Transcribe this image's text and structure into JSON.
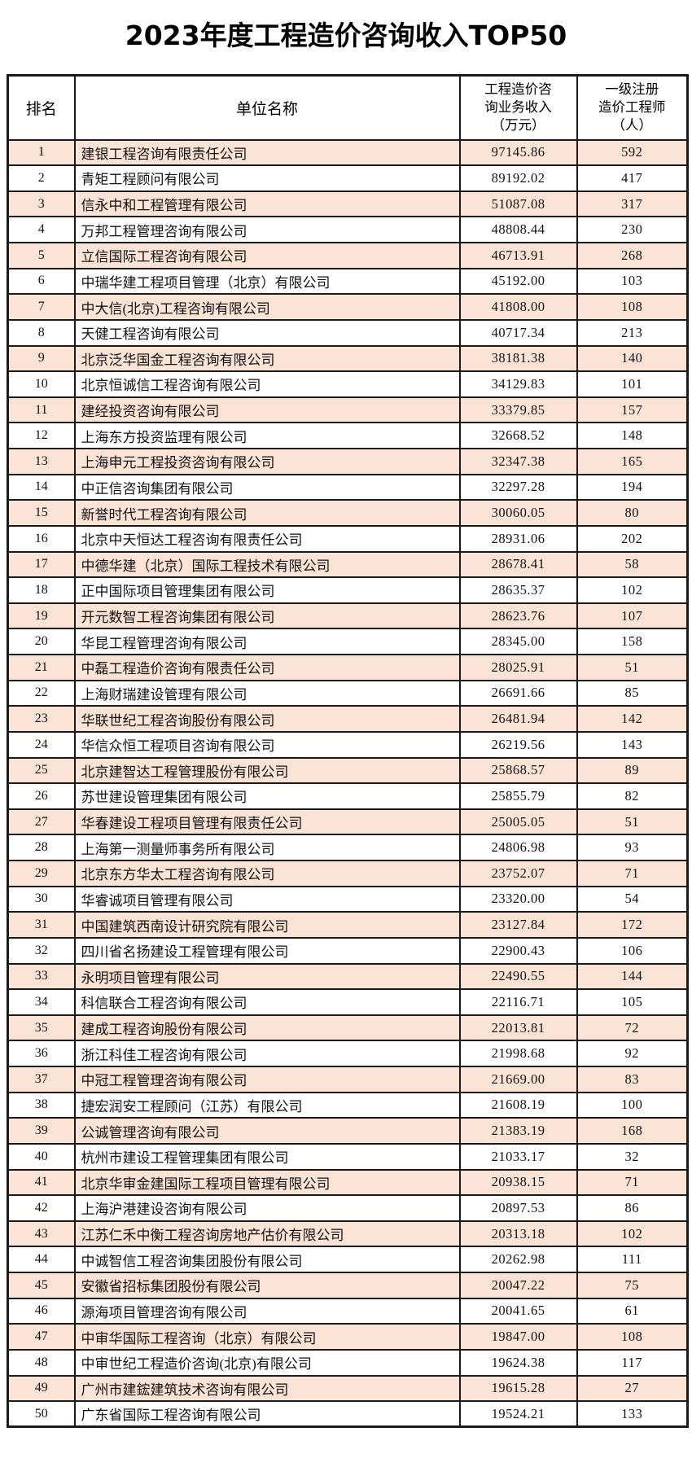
{
  "page_title": "2023年度工程造价咨询收入TOP50",
  "colors": {
    "stripe": "#fbe3d5",
    "border": "#1a1a1a"
  },
  "table": {
    "headers": {
      "rank": "排名",
      "name": "单位名称",
      "revenue": "工程造价咨\n询业务收入\n（万元）",
      "engineers": "一级注册\n造价工程师\n（人）"
    },
    "rows": [
      {
        "rank": 1,
        "name": "建银工程咨询有限责任公司",
        "revenue": "97145.86",
        "engineers": 592
      },
      {
        "rank": 2,
        "name": "青矩工程顾问有限公司",
        "revenue": "89192.02",
        "engineers": 417
      },
      {
        "rank": 3,
        "name": "信永中和工程管理有限公司",
        "revenue": "51087.08",
        "engineers": 317
      },
      {
        "rank": 4,
        "name": "万邦工程管理咨询有限公司",
        "revenue": "48808.44",
        "engineers": 230
      },
      {
        "rank": 5,
        "name": "立信国际工程咨询有限公司",
        "revenue": "46713.91",
        "engineers": 268
      },
      {
        "rank": 6,
        "name": "中瑞华建工程项目管理（北京）有限公司",
        "revenue": "45192.00",
        "engineers": 103
      },
      {
        "rank": 7,
        "name": "中大信(北京)工程咨询有限公司",
        "revenue": "41808.00",
        "engineers": 108
      },
      {
        "rank": 8,
        "name": "天健工程咨询有限公司",
        "revenue": "40717.34",
        "engineers": 213
      },
      {
        "rank": 9,
        "name": "北京泛华国金工程咨询有限公司",
        "revenue": "38181.38",
        "engineers": 140
      },
      {
        "rank": 10,
        "name": "北京恒诚信工程咨询有限公司",
        "revenue": "34129.83",
        "engineers": 101
      },
      {
        "rank": 11,
        "name": "建经投资咨询有限公司",
        "revenue": "33379.85",
        "engineers": 157
      },
      {
        "rank": 12,
        "name": "上海东方投资监理有限公司",
        "revenue": "32668.52",
        "engineers": 148
      },
      {
        "rank": 13,
        "name": "上海申元工程投资咨询有限公司",
        "revenue": "32347.38",
        "engineers": 165
      },
      {
        "rank": 14,
        "name": "中正信咨询集团有限公司",
        "revenue": "32297.28",
        "engineers": 194
      },
      {
        "rank": 15,
        "name": "新誉时代工程咨询有限公司",
        "revenue": "30060.05",
        "engineers": 80
      },
      {
        "rank": 16,
        "name": "北京中天恒达工程咨询有限责任公司",
        "revenue": "28931.06",
        "engineers": 202
      },
      {
        "rank": 17,
        "name": "中德华建（北京）国际工程技术有限公司",
        "revenue": "28678.41",
        "engineers": 58
      },
      {
        "rank": 18,
        "name": "正中国际项目管理集团有限公司",
        "revenue": "28635.37",
        "engineers": 102
      },
      {
        "rank": 19,
        "name": "开元数智工程咨询集团有限公司",
        "revenue": "28623.76",
        "engineers": 107
      },
      {
        "rank": 20,
        "name": "华昆工程管理咨询有限公司",
        "revenue": "28345.00",
        "engineers": 158
      },
      {
        "rank": 21,
        "name": "中磊工程造价咨询有限责任公司",
        "revenue": "28025.91",
        "engineers": 51
      },
      {
        "rank": 22,
        "name": "上海财瑞建设管理有限公司",
        "revenue": "26691.66",
        "engineers": 85
      },
      {
        "rank": 23,
        "name": "华联世纪工程咨询股份有限公司",
        "revenue": "26481.94",
        "engineers": 142
      },
      {
        "rank": 24,
        "name": "华信众恒工程项目咨询有限公司",
        "revenue": "26219.56",
        "engineers": 143
      },
      {
        "rank": 25,
        "name": "北京建智达工程管理股份有限公司",
        "revenue": "25868.57",
        "engineers": 89
      },
      {
        "rank": 26,
        "name": "苏世建设管理集团有限公司",
        "revenue": "25855.79",
        "engineers": 82
      },
      {
        "rank": 27,
        "name": "华春建设工程项目管理有限责任公司",
        "revenue": "25005.05",
        "engineers": 51
      },
      {
        "rank": 28,
        "name": "上海第一测量师事务所有限公司",
        "revenue": "24806.98",
        "engineers": 93
      },
      {
        "rank": 29,
        "name": "北京东方华太工程咨询有限公司",
        "revenue": "23752.07",
        "engineers": 71
      },
      {
        "rank": 30,
        "name": "华睿诚项目管理有限公司",
        "revenue": "23320.00",
        "engineers": 54
      },
      {
        "rank": 31,
        "name": "中国建筑西南设计研究院有限公司",
        "revenue": "23127.84",
        "engineers": 172
      },
      {
        "rank": 32,
        "name": "四川省名扬建设工程管理有限公司",
        "revenue": "22900.43",
        "engineers": 106
      },
      {
        "rank": 33,
        "name": "永明项目管理有限公司",
        "revenue": "22490.55",
        "engineers": 144
      },
      {
        "rank": 34,
        "name": "科信联合工程咨询有限公司",
        "revenue": "22116.71",
        "engineers": 105
      },
      {
        "rank": 35,
        "name": "建成工程咨询股份有限公司",
        "revenue": "22013.81",
        "engineers": 72
      },
      {
        "rank": 36,
        "name": "浙江科佳工程咨询有限公司",
        "revenue": "21998.68",
        "engineers": 92
      },
      {
        "rank": 37,
        "name": "中冠工程管理咨询有限公司",
        "revenue": "21669.00",
        "engineers": 83
      },
      {
        "rank": 38,
        "name": "捷宏润安工程顾问（江苏）有限公司",
        "revenue": "21608.19",
        "engineers": 100
      },
      {
        "rank": 39,
        "name": "公诚管理咨询有限公司",
        "revenue": "21383.19",
        "engineers": 168
      },
      {
        "rank": 40,
        "name": "杭州市建设工程管理集团有限公司",
        "revenue": "21033.17",
        "engineers": 32
      },
      {
        "rank": 41,
        "name": "北京华审金建国际工程项目管理有限公司",
        "revenue": "20938.15",
        "engineers": 71
      },
      {
        "rank": 42,
        "name": "上海沪港建设咨询有限公司",
        "revenue": "20897.53",
        "engineers": 86
      },
      {
        "rank": 43,
        "name": "江苏仁禾中衡工程咨询房地产估价有限公司",
        "revenue": "20313.18",
        "engineers": 102
      },
      {
        "rank": 44,
        "name": "中诚智信工程咨询集团股份有限公司",
        "revenue": "20262.98",
        "engineers": 111
      },
      {
        "rank": 45,
        "name": "安徽省招标集团股份有限公司",
        "revenue": "20047.22",
        "engineers": 75
      },
      {
        "rank": 46,
        "name": "源海项目管理咨询有限公司",
        "revenue": "20041.65",
        "engineers": 61
      },
      {
        "rank": 47,
        "name": "中审华国际工程咨询（北京）有限公司",
        "revenue": "19847.00",
        "engineers": 108
      },
      {
        "rank": 48,
        "name": "中审世纪工程造价咨询(北京)有限公司",
        "revenue": "19624.38",
        "engineers": 117
      },
      {
        "rank": 49,
        "name": "广州市建鋐建筑技术咨询有限公司",
        "revenue": "19615.28",
        "engineers": 27
      },
      {
        "rank": 50,
        "name": "广东省国际工程咨询有限公司",
        "revenue": "19524.21",
        "engineers": 133
      }
    ]
  }
}
